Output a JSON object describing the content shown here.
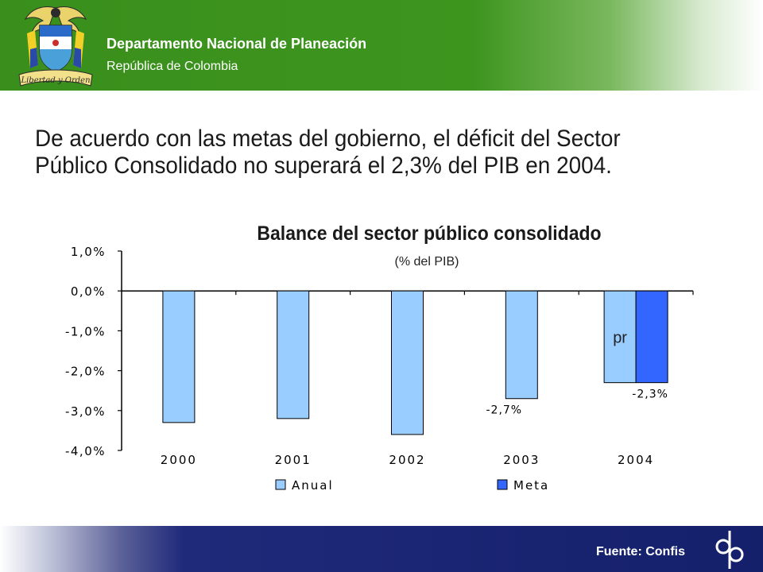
{
  "header": {
    "org_name": "Departamento Nacional de Planeación",
    "org_sub": "República de Colombia",
    "logo_motto": "Libertad y Orden",
    "colors": {
      "header_green": "#3d951e",
      "footer_navy": "#15206b"
    }
  },
  "headline": "De acuerdo con las metas del gobierno, el déficit del Sector Público Consolidado no superará el 2,3% del PIB en 2004.",
  "footer": {
    "source": "Fuente: Confis",
    "mark_icon": "dnp-logo-icon"
  },
  "chart_data": {
    "type": "bar",
    "title": "Balance del sector público consolidado",
    "subtitle": "(% del PIB)",
    "categories": [
      "2000",
      "2001",
      "2002",
      "2003",
      "2004"
    ],
    "series": [
      {
        "name": "Anual",
        "color": "#99ccff",
        "values": [
          -3.3,
          -3.2,
          -3.6,
          -2.7,
          -2.3
        ]
      },
      {
        "name": "Meta",
        "color": "#3366ff",
        "values": [
          null,
          null,
          null,
          null,
          -2.3
        ]
      }
    ],
    "ylim": [
      -4.0,
      1.0
    ],
    "yticks": [
      "1,0%",
      "0,0%",
      "-1,0%",
      "-2,0%",
      "-3,0%",
      "-4,0%"
    ],
    "data_labels": [
      {
        "category": "2003",
        "series": "Anual",
        "text": "-2,7%"
      },
      {
        "category": "2004",
        "series": "Meta",
        "text": "-2,3%"
      }
    ],
    "annotation": "pr",
    "legend": "bottom",
    "grid": false
  }
}
